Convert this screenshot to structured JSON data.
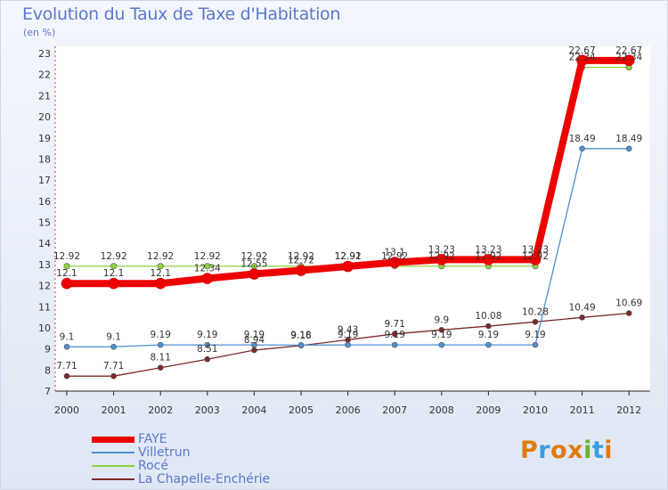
{
  "title": "Evolution du Taux de Taxe d'Habitation",
  "unit_label": "(en %)",
  "logo": {
    "letters": [
      "P",
      "r",
      "o",
      "x",
      "i",
      "t",
      "i"
    ],
    "colors": [
      "#e07a10",
      "#3b9ee0",
      "#e07a10",
      "#e07a10",
      "#69b52f",
      "#3b9ee0",
      "#e07a10"
    ]
  },
  "chart_data": {
    "type": "line",
    "title": "Evolution du Taux de Taxe d'Habitation",
    "ylabel": "(en %)",
    "xlabel": "",
    "ylim": [
      7,
      23
    ],
    "grid": false,
    "legend_position": "bottom-left",
    "x": [
      "2000",
      "2001",
      "2002",
      "2003",
      "2004",
      "2005",
      "2006",
      "2007",
      "2008",
      "2009",
      "2010",
      "2011",
      "2012"
    ],
    "y_ticks": [
      "7",
      "8",
      "9",
      "10",
      "11",
      "12",
      "13",
      "14",
      "15",
      "16",
      "17",
      "18",
      "19",
      "20",
      "21",
      "22",
      "23"
    ],
    "series": [
      {
        "name": "FAYE",
        "color": "#ee0000",
        "values": [
          12.1,
          12.1,
          12.1,
          12.34,
          12.55,
          12.72,
          12.91,
          13.1,
          13.23,
          13.23,
          13.23,
          22.67,
          22.67
        ],
        "labels": [
          "12.1",
          "12.1",
          "12.1",
          "12.34",
          "12.55",
          "12.72",
          "12.91",
          "13.1",
          "13.23",
          "13.23",
          "13.23",
          "22.67",
          "22.67"
        ]
      },
      {
        "name": "Villetrun",
        "color": "#4f8fd0",
        "values": [
          9.1,
          9.1,
          9.19,
          9.19,
          9.19,
          9.18,
          9.19,
          9.19,
          9.19,
          9.19,
          9.19,
          18.49,
          18.49
        ],
        "labels": [
          "9.1",
          "9.1",
          "9.19",
          "9.19",
          "9.19",
          "9.18",
          "9.19",
          "9.19",
          "9.19",
          "9.19",
          "9.19",
          "18.49",
          "18.49"
        ]
      },
      {
        "name": "Rocé",
        "color": "#8ed43a",
        "values": [
          12.92,
          12.92,
          12.92,
          12.92,
          12.92,
          12.92,
          12.92,
          12.92,
          12.92,
          12.92,
          12.92,
          22.34,
          22.34
        ],
        "labels": [
          "12.92",
          "12.92",
          "12.92",
          "12.92",
          "12.92",
          "12.92",
          "12.92",
          "12.92",
          "12.92",
          "12.92",
          "12.92",
          "22.34",
          "22.34"
        ]
      },
      {
        "name": "La Chapelle-Enchérie",
        "color": "#7a2a2a",
        "values": [
          7.71,
          7.71,
          8.11,
          8.51,
          8.94,
          9.16,
          9.43,
          9.71,
          9.9,
          10.08,
          10.28,
          10.49,
          10.69
        ],
        "labels": [
          "7.71",
          "7.71",
          "8.11",
          "8.51",
          "8.94",
          "9.16",
          "9.43",
          "9.71",
          "9.9",
          "10.08",
          "10.28",
          "10.49",
          "10.69"
        ]
      }
    ]
  }
}
